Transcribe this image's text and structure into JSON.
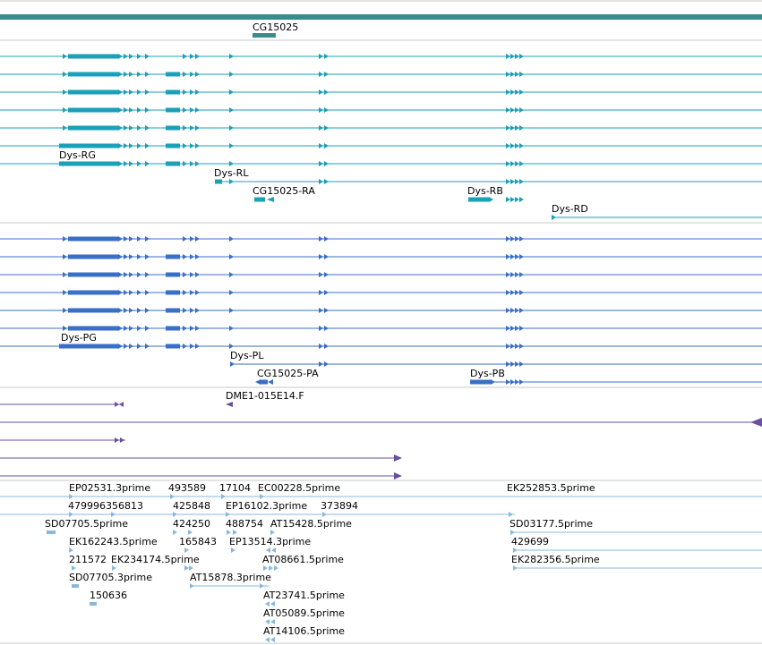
{
  "colors": {
    "gene": "#3a8c8c",
    "mrna": "#1aa0b8",
    "protein": "#3a6fc8",
    "misc": "#6a4fa0",
    "est": "#8ab8dc",
    "separator": "#c8c8c8"
  },
  "gene_track": {
    "label": "CG15025"
  },
  "mrna_track": {
    "labels": [
      "Dys-RG",
      "Dys-RL",
      "CG15025-RA",
      "Dys-RB",
      "Dys-RD"
    ]
  },
  "protein_track": {
    "labels": [
      "Dys-PG",
      "Dys-PL",
      "CG15025-PA",
      "Dys-PB"
    ]
  },
  "misc_track": {
    "label": "DME1-015E14.F"
  },
  "est_track": {
    "labels": [
      "EP02531.3prime",
      "493589",
      "17104",
      "EC00228.5prime",
      "EK252853.5prime",
      "479996356813",
      "425848",
      "EP16102.3prime",
      "373894",
      "SD07705.5prime",
      "424250",
      "488754",
      "AT15428.5prime",
      "SD03177.5prime",
      "EK162243.5prime",
      "165843",
      "EP13514.3prime",
      "429699",
      "211572",
      "EK234174.5prime",
      "AT08661.5prime",
      "EK282356.5prime",
      "SD07705.3prime",
      "AT15878.3prime",
      "150636",
      "AT23741.5prime",
      "AT05089.5prime",
      "AT14106.5prime"
    ]
  }
}
